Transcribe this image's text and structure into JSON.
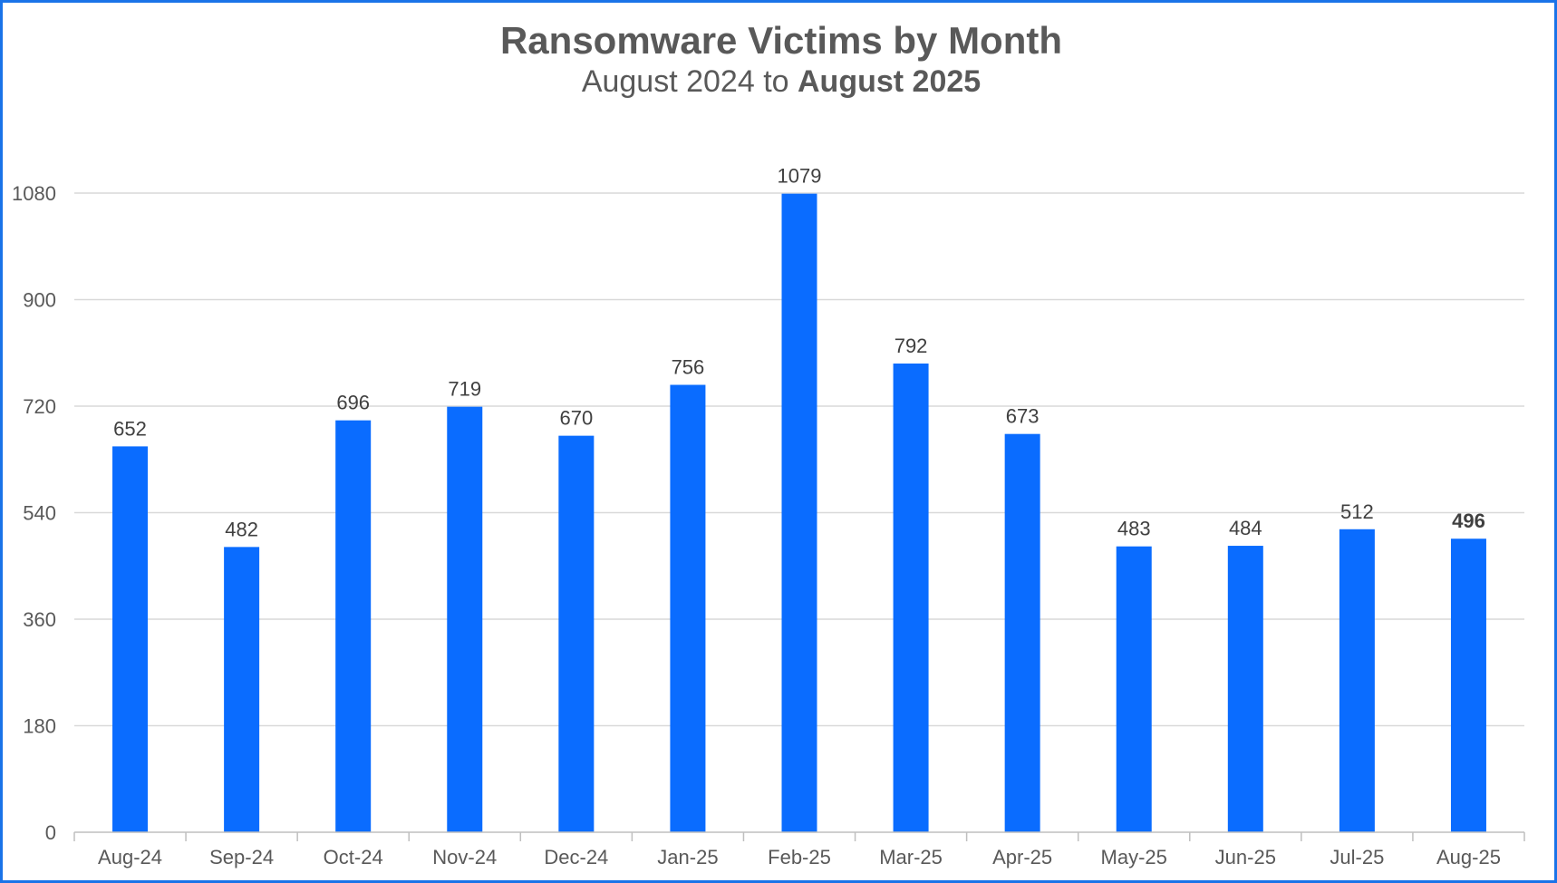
{
  "chart_data": {
    "type": "bar",
    "title": "Ransomware Victims by Month",
    "subtitle_plain": "August 2024 to ",
    "subtitle_bold": "August 2025",
    "xlabel": "",
    "ylabel": "",
    "categories": [
      "Aug-24",
      "Sep-24",
      "Oct-24",
      "Nov-24",
      "Dec-24",
      "Jan-25",
      "Feb-25",
      "Mar-25",
      "Apr-25",
      "May-25",
      "Jun-25",
      "Jul-25",
      "Aug-25"
    ],
    "values": [
      652,
      482,
      696,
      719,
      670,
      756,
      1079,
      792,
      673,
      483,
      484,
      512,
      496
    ],
    "highlight_index": 12,
    "ylim": [
      0,
      1080
    ],
    "yticks": [
      0,
      180,
      360,
      540,
      720,
      900,
      1080
    ],
    "grid": true,
    "legend": "none",
    "colors": {
      "bar": "#0a6cff",
      "text": "#595959",
      "label": "#404040",
      "grid": "#d9d9d9",
      "axis": "#bfbfbf",
      "border": "#1a73e8"
    }
  }
}
